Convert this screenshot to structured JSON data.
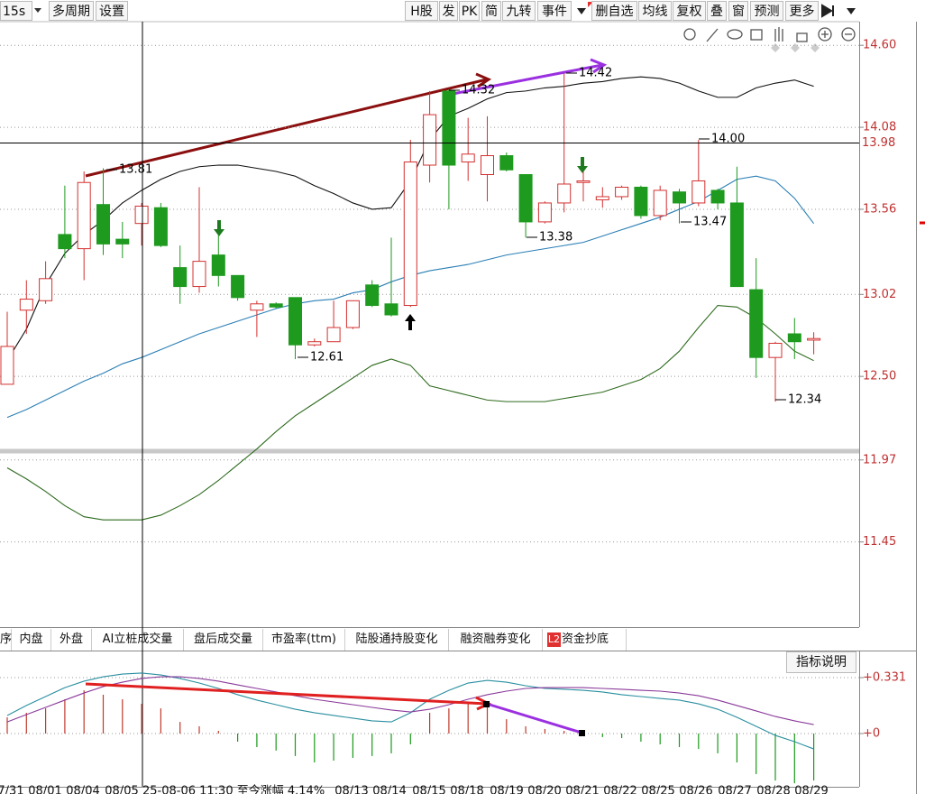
{
  "ui": {
    "left_buttons": [
      "15s",
      "多周期",
      "设置"
    ],
    "right_buttons": [
      "H股",
      "发",
      "PK",
      "简",
      "九转",
      "事件",
      "删自选",
      "均线",
      "复权",
      "叠",
      "窗",
      "预测",
      "更多"
    ],
    "tabs": [
      "序",
      "内盘",
      "外盘",
      "AI立桩成交量",
      "盘后成交量",
      "市盈率(ttm)",
      "陆股通持股变化",
      "融资融券变化",
      "L2",
      "资金抄底"
    ],
    "help_button": "指标说明",
    "date_labels": [
      "7/31",
      "08/01",
      "08/04",
      "08/05",
      "25-08-06 11:30 至今涨幅 4.14%",
      "08/13",
      "08/14",
      "08/15",
      "08/18",
      "08/19",
      "08/20",
      "08/21",
      "08/22",
      "08/25",
      "08/26",
      "08/27",
      "08/28",
      "08/29"
    ]
  },
  "chart_data": [
    {
      "type": "candlestick",
      "up_color": "#d43030",
      "down_color": "#1e9a1e",
      "open": [
        12.45,
        12.92,
        12.98,
        13.4,
        13.31,
        13.59,
        13.37,
        13.47,
        13.57,
        13.19,
        13.07,
        13.27,
        13.14,
        12.92,
        12.96,
        13.0,
        12.7,
        12.72,
        12.81,
        13.08,
        12.96,
        12.95,
        13.84,
        14.31,
        13.86,
        13.78,
        13.9,
        13.78,
        13.48,
        13.6,
        13.73,
        13.62,
        13.64,
        13.7,
        13.52,
        13.67,
        13.6,
        13.68,
        13.6,
        13.05,
        12.62,
        12.77,
        12.73
      ],
      "close": [
        12.69,
        12.99,
        13.12,
        13.31,
        13.73,
        13.34,
        13.34,
        13.58,
        13.33,
        13.07,
        13.23,
        13.14,
        13.0,
        12.96,
        12.94,
        12.7,
        12.72,
        12.81,
        12.98,
        12.95,
        12.89,
        13.86,
        14.16,
        13.84,
        13.91,
        13.9,
        13.81,
        13.48,
        13.6,
        13.72,
        13.74,
        13.64,
        13.7,
        13.52,
        13.68,
        13.6,
        13.74,
        13.6,
        13.07,
        12.62,
        12.71,
        12.72,
        12.74
      ],
      "high": [
        12.91,
        13.11,
        13.23,
        13.71,
        13.8,
        13.82,
        13.48,
        13.6,
        13.6,
        13.33,
        13.7,
        13.4,
        13.14,
        12.98,
        12.97,
        13.0,
        12.74,
        12.98,
        12.98,
        13.11,
        13.38,
        14.0,
        14.31,
        14.32,
        14.14,
        14.15,
        13.92,
        13.78,
        13.61,
        14.42,
        13.8,
        13.7,
        13.71,
        13.71,
        13.71,
        13.69,
        14.0,
        13.69,
        13.83,
        13.25,
        12.72,
        12.87,
        12.78
      ],
      "low": [
        12.45,
        12.77,
        12.96,
        13.25,
        13.11,
        13.27,
        13.25,
        13.33,
        13.32,
        12.96,
        13.03,
        13.07,
        12.98,
        12.75,
        12.93,
        12.61,
        12.69,
        12.72,
        12.8,
        12.94,
        12.88,
        12.94,
        13.73,
        13.56,
        13.74,
        13.61,
        13.8,
        13.38,
        13.47,
        13.54,
        13.61,
        13.57,
        13.62,
        13.5,
        13.49,
        13.47,
        13.58,
        13.56,
        13.07,
        12.49,
        12.34,
        12.61,
        12.64
      ],
      "series": [
        {
          "color": "#111111",
          "values": [
            12.6,
            12.8,
            13.08,
            13.28,
            13.4,
            13.49,
            13.6,
            13.68,
            13.75,
            13.8,
            13.83,
            13.84,
            13.84,
            13.82,
            13.8,
            13.77,
            13.71,
            13.66,
            13.6,
            13.56,
            13.57,
            13.74,
            14.0,
            14.15,
            14.2,
            14.26,
            14.3,
            14.31,
            14.33,
            14.34,
            14.36,
            14.37,
            14.39,
            14.4,
            14.39,
            14.36,
            14.31,
            14.27,
            14.27,
            14.33,
            14.36,
            14.38,
            14.34
          ]
        },
        {
          "color": "#2b7fb5",
          "values": [
            12.24,
            12.29,
            12.35,
            12.41,
            12.47,
            12.52,
            12.58,
            12.62,
            12.67,
            12.72,
            12.77,
            12.81,
            12.85,
            12.89,
            12.93,
            12.96,
            12.98,
            12.99,
            13.03,
            13.05,
            13.1,
            13.14,
            13.17,
            13.19,
            13.21,
            13.24,
            13.27,
            13.29,
            13.31,
            13.33,
            13.35,
            13.39,
            13.43,
            13.47,
            13.51,
            13.56,
            13.61,
            13.68,
            13.75,
            13.77,
            13.74,
            13.63,
            13.47
          ]
        },
        {
          "color": "#2e6b1e",
          "values": [
            11.92,
            11.85,
            11.77,
            11.68,
            11.61,
            11.59,
            11.59,
            11.59,
            11.62,
            11.68,
            11.75,
            11.84,
            11.94,
            12.04,
            12.15,
            12.25,
            12.33,
            12.41,
            12.49,
            12.57,
            12.61,
            12.57,
            12.44,
            12.41,
            12.38,
            12.35,
            12.34,
            12.34,
            12.34,
            12.36,
            12.38,
            12.4,
            12.44,
            12.48,
            12.55,
            12.66,
            12.81,
            12.95,
            12.94,
            12.87,
            12.77,
            12.66,
            12.6
          ]
        }
      ],
      "ylim": [
        10.91,
        14.75
      ],
      "yticks": [
        {
          "value": 14.6,
          "label": "14.60"
        },
        {
          "value": 14.08,
          "label": "14.08"
        },
        {
          "value": 13.56,
          "label": "13.56"
        },
        {
          "value": 13.02,
          "label": "13.02"
        },
        {
          "value": 12.5,
          "label": "12.50"
        },
        {
          "value": 11.97,
          "label": "11.97"
        },
        {
          "value": 11.45,
          "label": "11.45"
        }
      ],
      "crosshair": {
        "value": 13.98,
        "label": "13.98"
      },
      "annotations": [
        "13.81",
        "14.32",
        "14.42",
        "14.00",
        "13.38",
        "13.47",
        "12.61",
        "12.34"
      ]
    },
    {
      "type": "macd",
      "up_color": "#c0392b",
      "down_color": "#1a9a1a",
      "values": [
        0.096,
        0.123,
        0.149,
        0.203,
        0.256,
        0.23,
        0.203,
        0.176,
        0.149,
        0.069,
        0.043,
        0.016,
        -0.048,
        -0.08,
        -0.101,
        -0.133,
        -0.171,
        -0.16,
        -0.144,
        -0.133,
        -0.117,
        -0.064,
        0.123,
        0.149,
        0.176,
        0.176,
        0.085,
        0.043,
        0.027,
        0.016,
        -0.011,
        -0.021,
        -0.027,
        -0.048,
        -0.064,
        -0.08,
        -0.091,
        -0.117,
        -0.171,
        -0.24,
        -0.278,
        -0.294,
        -0.278
      ],
      "series": [
        {
          "color": "#2a8fa0",
          "values": [
            0.107,
            0.166,
            0.219,
            0.272,
            0.31,
            0.336,
            0.352,
            0.358,
            0.347,
            0.326,
            0.299,
            0.267,
            0.23,
            0.198,
            0.171,
            0.144,
            0.123,
            0.107,
            0.091,
            0.075,
            0.069,
            0.123,
            0.203,
            0.256,
            0.299,
            0.315,
            0.304,
            0.283,
            0.267,
            0.262,
            0.256,
            0.246,
            0.23,
            0.219,
            0.208,
            0.198,
            0.176,
            0.144,
            0.096,
            0.043,
            -0.011,
            -0.048,
            -0.091
          ]
        },
        {
          "color": "#8a3a9a",
          "values": [
            0.069,
            0.112,
            0.155,
            0.198,
            0.24,
            0.278,
            0.304,
            0.326,
            0.336,
            0.336,
            0.326,
            0.31,
            0.288,
            0.267,
            0.246,
            0.224,
            0.203,
            0.187,
            0.171,
            0.155,
            0.139,
            0.128,
            0.144,
            0.171,
            0.203,
            0.23,
            0.251,
            0.267,
            0.272,
            0.272,
            0.272,
            0.267,
            0.262,
            0.256,
            0.251,
            0.24,
            0.224,
            0.198,
            0.166,
            0.134,
            0.101,
            0.075,
            0.053
          ]
        }
      ],
      "ylim": [
        -0.315,
        0.486
      ],
      "yticks": [
        {
          "value": 0.331,
          "label": "+0.331"
        },
        {
          "value": 0,
          "label": "+0"
        }
      ]
    }
  ]
}
